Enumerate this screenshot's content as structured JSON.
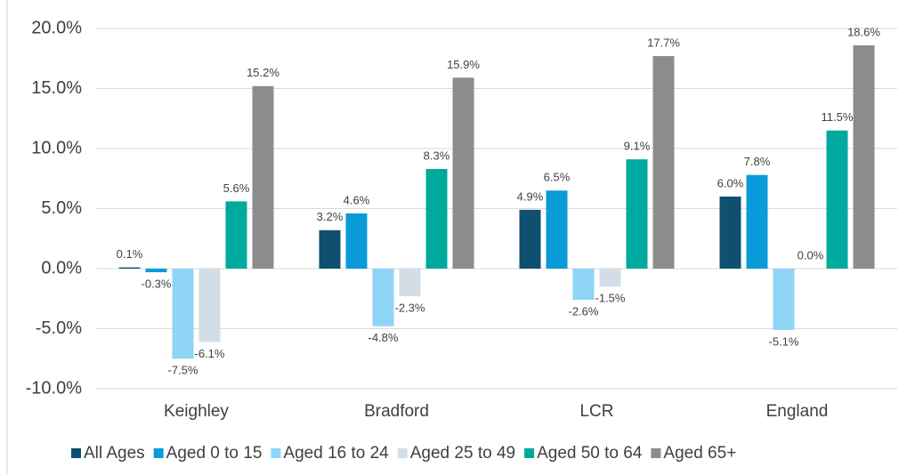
{
  "chart_data": {
    "type": "bar",
    "categories": [
      "Keighley",
      "Bradford",
      "LCR",
      "England"
    ],
    "series": [
      {
        "name": "All Ages",
        "color": "#0f4f70",
        "values": [
          0.1,
          3.2,
          4.9,
          6.0
        ],
        "value_labels": [
          "0.1%",
          "3.2%",
          "4.9%",
          "6.0%"
        ]
      },
      {
        "name": "Aged 0 to 15",
        "color": "#0a9bd8",
        "values": [
          -0.3,
          4.6,
          6.5,
          7.8
        ],
        "value_labels": [
          "-0.3%",
          "4.6%",
          "6.5%",
          "7.8%"
        ]
      },
      {
        "name": "Aged 16 to 24",
        "color": "#8fd5f5",
        "values": [
          -7.5,
          -4.8,
          -2.6,
          -5.1
        ],
        "value_labels": [
          "-7.5%",
          "-4.8%",
          "-2.6%",
          "-5.1%"
        ]
      },
      {
        "name": "Aged 25 to 49",
        "color": "#d3dde6",
        "values": [
          -6.1,
          -2.3,
          -1.5,
          0.0
        ],
        "value_labels": [
          "-6.1%",
          "-2.3%",
          "-1.5%",
          "0.0%"
        ]
      },
      {
        "name": "Aged 50 to 64",
        "color": "#00a99d",
        "values": [
          5.6,
          8.3,
          9.1,
          11.5
        ],
        "value_labels": [
          "5.6%",
          "8.3%",
          "9.1%",
          "11.5%"
        ]
      },
      {
        "name": "Aged 65+",
        "color": "#8c8c8c",
        "values": [
          15.2,
          15.9,
          17.7,
          18.6
        ],
        "value_labels": [
          "15.2%",
          "15.9%",
          "17.7%",
          "18.6%"
        ]
      }
    ],
    "ylim": [
      -10,
      20
    ],
    "yticks": [
      {
        "value": -10,
        "label": "-10.0%"
      },
      {
        "value": -5,
        "label": "-5.0%"
      },
      {
        "value": 0,
        "label": "0.0%"
      },
      {
        "value": 5,
        "label": "5.0%"
      },
      {
        "value": 10,
        "label": "10.0%"
      },
      {
        "value": 15,
        "label": "15.0%"
      },
      {
        "value": 20,
        "label": "20.0%"
      }
    ],
    "grid": true,
    "legend": "bottom"
  }
}
